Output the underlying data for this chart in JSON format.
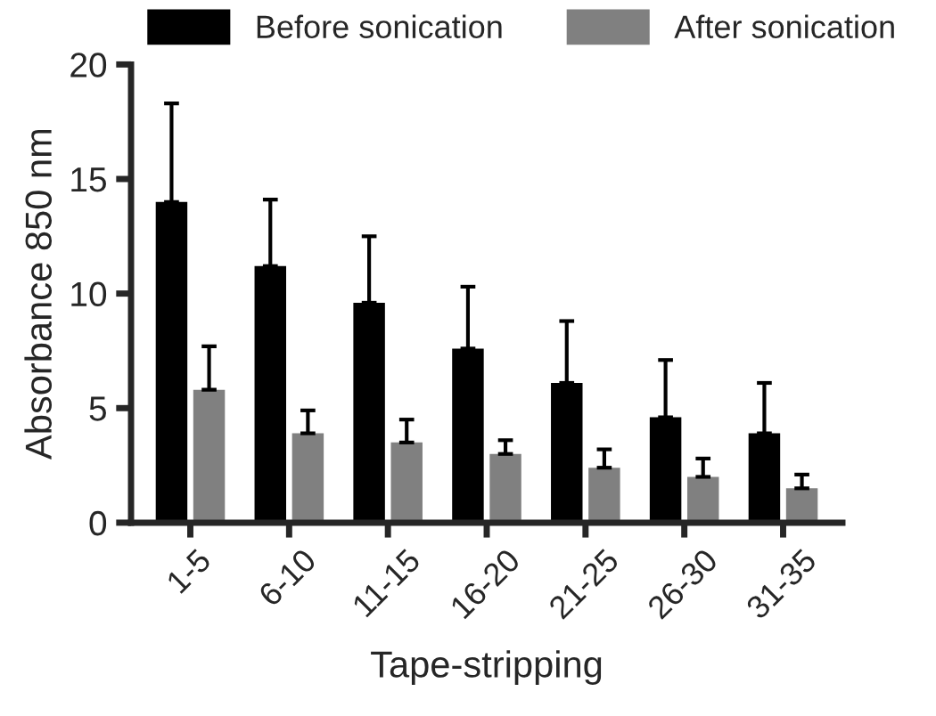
{
  "chart_data": {
    "type": "bar",
    "xlabel": "Tape-stripping",
    "ylabel": "Absorbance 850 nm",
    "categories": [
      "1-5",
      "6-10",
      "11-15",
      "16-20",
      "21-25",
      "26-30",
      "31-35"
    ],
    "series": [
      {
        "name": "Before sonication",
        "color": "#000000",
        "values": [
          14.0,
          11.2,
          9.6,
          7.6,
          6.1,
          4.6,
          3.9
        ],
        "errors": [
          [
            14.0,
            18.3
          ],
          [
            11.2,
            14.1
          ],
          [
            9.6,
            12.5
          ],
          [
            7.6,
            10.3
          ],
          [
            6.1,
            8.8
          ],
          [
            4.6,
            7.1
          ],
          [
            3.9,
            6.1
          ]
        ]
      },
      {
        "name": "After sonication",
        "color": "#808080",
        "values": [
          5.8,
          3.9,
          3.5,
          3.0,
          2.4,
          2.0,
          1.5
        ],
        "errors": [
          [
            5.8,
            7.7
          ],
          [
            3.9,
            4.9
          ],
          [
            3.5,
            4.5
          ],
          [
            3.0,
            3.6
          ],
          [
            2.4,
            3.2
          ],
          [
            2.0,
            2.8
          ],
          [
            1.5,
            2.1
          ]
        ]
      }
    ],
    "ylim": [
      0,
      20
    ],
    "yticks": [
      0,
      5,
      10,
      15,
      20
    ],
    "grid": false,
    "legend": "top"
  }
}
